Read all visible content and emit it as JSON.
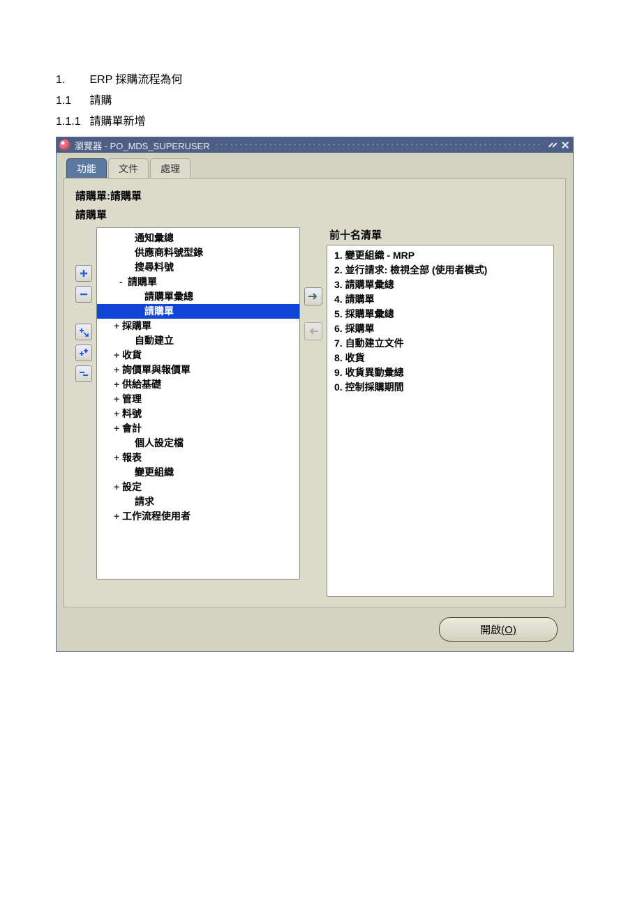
{
  "document": {
    "line1_num": "1.",
    "line1_text": "ERP 採購流程為何",
    "line2_num": "1.1",
    "line2_text": "請購",
    "line3_num": "1.1.1",
    "line3_text": "請購單新增"
  },
  "window": {
    "title": "瀏覽器 - PO_MDS_SUPERUSER"
  },
  "tabs": {
    "t1": "功能",
    "t2": "文件",
    "t3": "處理"
  },
  "breadcrumb": "請購單:請購單",
  "context_label": "請購單",
  "tree": {
    "items": [
      {
        "label": "通知彙總",
        "depth": "d0",
        "exp": ""
      },
      {
        "label": "供應商料號型錄",
        "depth": "d0",
        "exp": ""
      },
      {
        "label": "搜尋料號",
        "depth": "d0",
        "exp": ""
      },
      {
        "label": "請購單",
        "depth": "d1",
        "exp": "-"
      },
      {
        "label": "請購單彙總",
        "depth": "d2",
        "exp": ""
      },
      {
        "label": "請購單",
        "depth": "d2",
        "exp": "",
        "selected": true
      },
      {
        "label": "採購單",
        "depth": "d1p",
        "exp": "+"
      },
      {
        "label": "自動建立",
        "depth": "d0",
        "exp": ""
      },
      {
        "label": "收貨",
        "depth": "d1p",
        "exp": "+"
      },
      {
        "label": "詢價單與報價單",
        "depth": "d1p",
        "exp": "+"
      },
      {
        "label": "供給基礎",
        "depth": "d1p",
        "exp": "+"
      },
      {
        "label": "管理",
        "depth": "d1p",
        "exp": "+"
      },
      {
        "label": "料號",
        "depth": "d1p",
        "exp": "+"
      },
      {
        "label": "會計",
        "depth": "d1p",
        "exp": "+"
      },
      {
        "label": "個人設定檔",
        "depth": "d0",
        "exp": ""
      },
      {
        "label": "報表",
        "depth": "d1p",
        "exp": "+"
      },
      {
        "label": "變更組織",
        "depth": "d0",
        "exp": ""
      },
      {
        "label": "設定",
        "depth": "d1p",
        "exp": "+"
      },
      {
        "label": "請求",
        "depth": "d0",
        "exp": ""
      },
      {
        "label": "工作流程使用者",
        "depth": "d1p",
        "exp": "+"
      }
    ]
  },
  "top_list": {
    "title": "前十名清單",
    "items": [
      "1. 變更組織 - MRP",
      "2. 並行請求: 檢視全部 (使用者模式)",
      "3. 請購單彙總",
      "4. 請購單",
      "5. 採購單彙總",
      "6. 採購單",
      "7. 自動建立文件",
      "8. 收貨",
      "9. 收貨異動彙總",
      "0. 控制採購期間"
    ]
  },
  "buttons": {
    "open_label": "開啟",
    "open_accel": "(O)"
  },
  "colors": {
    "titlebar_bg": "#4e5f86",
    "panel_bg": "#d2d3c0",
    "inner_bg": "#dcdccd",
    "selection_bg": "#1046d8"
  }
}
